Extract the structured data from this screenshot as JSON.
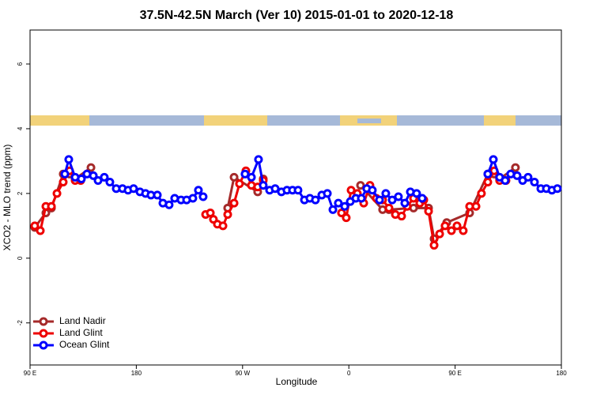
{
  "chart_data": {
    "type": "line",
    "title": "37.5N-42.5N March (Ver 10)   2015-01-01 to 2020-12-18",
    "x_label": "Longitude",
    "y_label": "XCO2 - MLO trend (ppm)",
    "xlim": [
      90,
      540
    ],
    "ylim": [
      -3.3,
      7.05
    ],
    "xticks": [
      {
        "value": 90,
        "label": "90 E"
      },
      {
        "value": 180,
        "label": "180"
      },
      {
        "value": 270,
        "label": "90 W"
      },
      {
        "value": 360,
        "label": "0"
      },
      {
        "value": 450,
        "label": "90 E"
      },
      {
        "value": 540,
        "label": "180"
      }
    ],
    "yticks": [
      -2,
      0,
      2,
      4,
      6
    ],
    "legend": "bottom-left",
    "series": [
      {
        "name": "Land Nadir",
        "color": "#a52a2a",
        "x": [
          94.0,
          103.4,
          108.1,
          118.1,
          123.5,
          128.2,
          141.6,
          null,
          257.4,
          262.8,
          282.8,
          287.5,
          null,
          369.9,
          388.6,
          394.0,
          414.8,
          427.5,
          432.2,
          442.9,
          462.3,
          477.7,
          483.1,
          487.7,
          501.1
        ],
        "values": [
          0.95,
          1.4,
          1.55,
          2.6,
          2.6,
          2.45,
          2.8,
          null,
          1.55,
          2.5,
          2.05,
          2.45,
          null,
          2.25,
          1.5,
          1.5,
          1.55,
          1.55,
          0.6,
          1.1,
          1.4,
          2.6,
          2.6,
          2.45,
          2.8
        ]
      },
      {
        "name": "Land Glint",
        "color": "#ee0000",
        "x": [
          94.0,
          98.7,
          103.4,
          108.1,
          112.8,
          118.1,
          123.5,
          128.2,
          132.9,
          null,
          238.7,
          242.7,
          245.3,
          248.7,
          253.4,
          257.4,
          262.8,
          267.4,
          272.8,
          277.5,
          282.8,
          287.5,
          null,
          353.8,
          357.8,
          361.9,
          367.2,
          372.6,
          377.9,
          383.3,
          388.6,
          394.0,
          399.4,
          404.7,
          409.4,
          414.8,
          420.1,
          423.5,
          427.5,
          432.2,
          436.9,
          441.5,
          446.9,
          451.6,
          456.9,
          462.3,
          467.7,
          472.3,
          477.7,
          483.1,
          487.7,
          493.1
        ],
        "values": [
          1.0,
          0.85,
          1.6,
          1.6,
          2.0,
          2.35,
          2.7,
          2.4,
          2.4,
          null,
          1.35,
          1.4,
          1.2,
          1.05,
          1.0,
          1.35,
          1.7,
          2.3,
          2.7,
          2.25,
          2.2,
          2.4,
          null,
          1.4,
          1.25,
          2.1,
          2.0,
          1.7,
          2.25,
          1.85,
          1.8,
          1.55,
          1.35,
          1.3,
          1.6,
          1.85,
          1.7,
          1.8,
          1.45,
          0.4,
          0.75,
          1.0,
          0.85,
          1.0,
          0.85,
          1.6,
          1.6,
          2.0,
          2.35,
          2.7,
          2.4,
          2.4
        ]
      },
      {
        "name": "Ocean Glint",
        "color": "#0000ff",
        "x": [
          119.5,
          122.8,
          128.2,
          133.5,
          138.2,
          143.6,
          147.6,
          152.9,
          157.6,
          163.0,
          168.3,
          173.0,
          177.7,
          183.1,
          187.8,
          192.4,
          197.8,
          202.5,
          207.8,
          212.5,
          217.9,
          222.6,
          227.9,
          232.6,
          236.6,
          null,
          272.1,
          277.5,
          283.5,
          287.5,
          292.9,
          297.6,
          302.9,
          307.6,
          312.3,
          317.0,
          322.4,
          327.0,
          331.7,
          337.1,
          341.8,
          346.5,
          351.1,
          356.5,
          361.2,
          365.9,
          370.6,
          375.2,
          379.9,
          386.0,
          391.3,
          396.7,
          402.0,
          407.4,
          412.1,
          417.4,
          422.1,
          null,
          477.7,
          482.4,
          487.7,
          492.4,
          497.1,
          502.5,
          507.2,
          511.8,
          517.2,
          522.6,
          527.3,
          532.0,
          536.6
        ],
        "values": [
          2.6,
          3.05,
          2.5,
          2.45,
          2.6,
          2.55,
          2.4,
          2.5,
          2.35,
          2.15,
          2.15,
          2.1,
          2.15,
          2.05,
          2.0,
          1.95,
          1.95,
          1.7,
          1.65,
          1.85,
          1.8,
          1.8,
          1.85,
          2.1,
          1.9,
          null,
          2.6,
          2.5,
          3.05,
          2.25,
          2.1,
          2.15,
          2.05,
          2.1,
          2.1,
          2.1,
          1.8,
          1.85,
          1.8,
          1.95,
          2.0,
          1.5,
          1.7,
          1.6,
          1.75,
          1.85,
          1.85,
          2.15,
          2.1,
          1.8,
          2.0,
          1.8,
          1.9,
          1.7,
          2.05,
          2.0,
          1.85,
          null,
          2.6,
          3.05,
          2.5,
          2.4,
          2.6,
          2.55,
          2.4,
          2.5,
          2.35,
          2.15,
          2.15,
          2.1,
          2.15
        ]
      }
    ]
  }
}
